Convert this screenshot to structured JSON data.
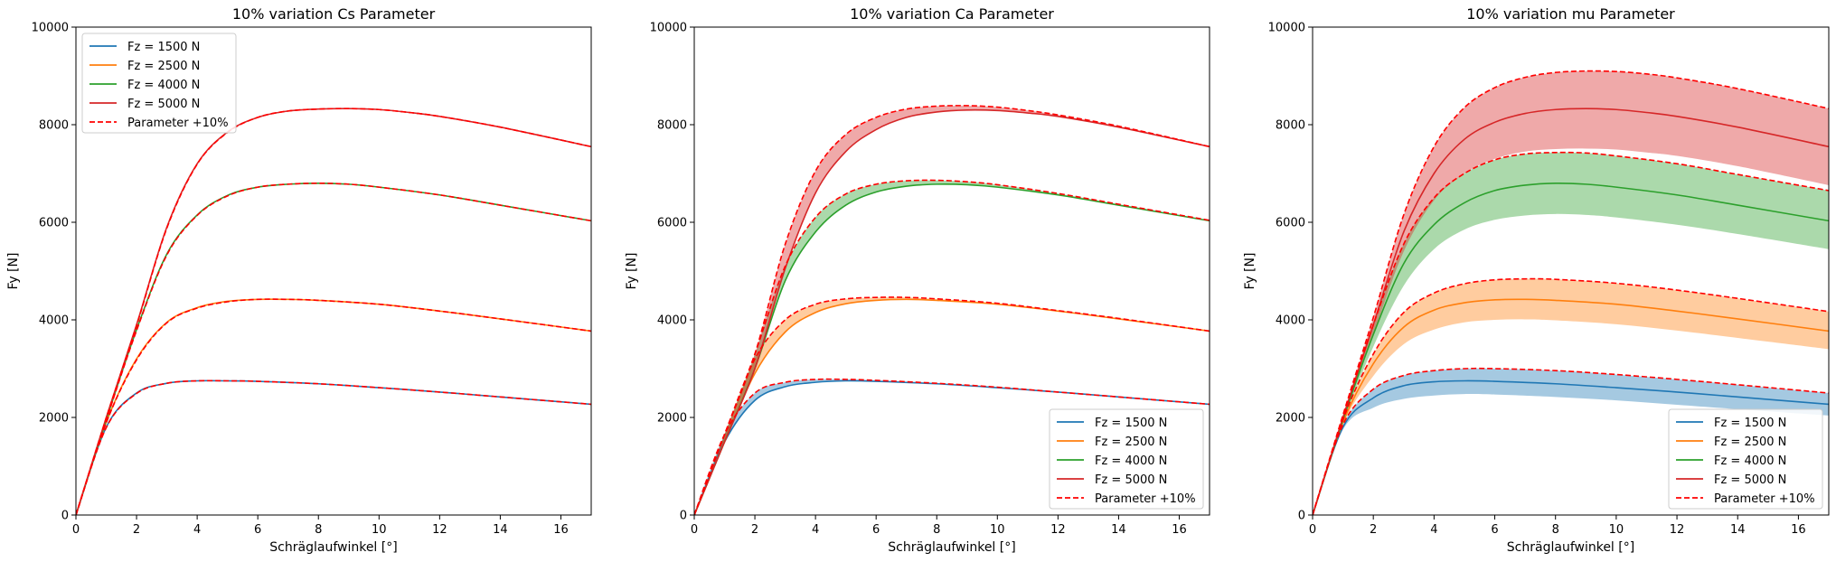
{
  "figure": {
    "colors": {
      "Fz = 1500 N": "#1f77b4",
      "Fz = 2500 N": "#ff7f0e",
      "Fz = 4000 N": "#2ca02c",
      "Fz = 5000 N": "#d62728",
      "Parameter +10%": "#ff0000"
    }
  },
  "chart_data": [
    {
      "type": "line",
      "title": "10% variation Cs Parameter",
      "xlabel": "Schräglaufwinkel [°]",
      "ylabel": "Fy [N]",
      "xlim": [
        0,
        17
      ],
      "ylim": [
        0,
        10000
      ],
      "xticks": [
        0,
        2,
        4,
        6,
        8,
        10,
        12,
        14,
        16
      ],
      "yticks": [
        0,
        2000,
        4000,
        6000,
        8000,
        10000
      ],
      "grid": false,
      "legend_position": "upper-left",
      "legend": [
        "Fz = 1500 N",
        "Fz = 2500 N",
        "Fz = 4000 N",
        "Fz = 5000 N",
        "Parameter +10%"
      ],
      "series": [
        {
          "name": "Fz = 1500 N",
          "x": [
            0,
            1,
            2,
            3,
            4,
            5,
            6,
            8,
            10,
            12,
            14,
            17
          ],
          "y": [
            0,
            1800,
            2500,
            2700,
            2750,
            2750,
            2740,
            2690,
            2610,
            2520,
            2420,
            2270
          ]
        },
        {
          "name": "Fz = 2500 N",
          "x": [
            0,
            1,
            2,
            3,
            4,
            5,
            6,
            7,
            8,
            10,
            12,
            14,
            17
          ],
          "y": [
            0,
            1900,
            3200,
            3950,
            4250,
            4380,
            4420,
            4420,
            4400,
            4320,
            4180,
            4020,
            3770
          ]
        },
        {
          "name": "Fz = 4000 N",
          "x": [
            0,
            1,
            2,
            3,
            4,
            5,
            6,
            7,
            8,
            9,
            10,
            12,
            14,
            17
          ],
          "y": [
            0,
            1950,
            3800,
            5350,
            6150,
            6550,
            6720,
            6780,
            6800,
            6780,
            6720,
            6560,
            6350,
            6030
          ]
        },
        {
          "name": "Fz = 5000 N",
          "x": [
            0,
            1,
            2,
            3,
            4,
            5,
            6,
            7,
            8,
            9,
            10,
            11,
            12,
            14,
            17
          ],
          "y": [
            0,
            2000,
            3900,
            5900,
            7200,
            7850,
            8150,
            8280,
            8320,
            8330,
            8310,
            8250,
            8170,
            7950,
            7550
          ]
        }
      ],
      "variation_series": [
        {
          "name": "Parameter +10%",
          "base": "Fz = 1500 N",
          "x": [
            0,
            1,
            2,
            3,
            4,
            5,
            6,
            8,
            10,
            12,
            14,
            17
          ],
          "y": [
            0,
            1790,
            2490,
            2700,
            2750,
            2750,
            2740,
            2690,
            2610,
            2520,
            2420,
            2270
          ]
        },
        {
          "name": "Parameter +10%",
          "base": "Fz = 2500 N",
          "x": [
            0,
            1,
            2,
            3,
            4,
            5,
            6,
            7,
            8,
            10,
            12,
            14,
            17
          ],
          "y": [
            0,
            1890,
            3180,
            3940,
            4240,
            4370,
            4420,
            4420,
            4400,
            4320,
            4180,
            4020,
            3770
          ]
        },
        {
          "name": "Parameter +10%",
          "base": "Fz = 4000 N",
          "x": [
            0,
            1,
            2,
            3,
            4,
            5,
            6,
            7,
            8,
            9,
            10,
            12,
            14,
            17
          ],
          "y": [
            0,
            1940,
            3780,
            5330,
            6140,
            6540,
            6720,
            6780,
            6800,
            6780,
            6720,
            6560,
            6350,
            6030
          ]
        },
        {
          "name": "Parameter +10%",
          "base": "Fz = 5000 N",
          "x": [
            0,
            1,
            2,
            3,
            4,
            5,
            6,
            7,
            8,
            9,
            10,
            11,
            12,
            14,
            17
          ],
          "y": [
            0,
            1990,
            3880,
            5880,
            7190,
            7840,
            8150,
            8280,
            8320,
            8330,
            8310,
            8250,
            8170,
            7950,
            7550
          ]
        }
      ]
    },
    {
      "type": "line",
      "title": "10% variation Ca Parameter",
      "xlabel": "Schräglaufwinkel [°]",
      "ylabel": "Fy [N]",
      "xlim": [
        0,
        17
      ],
      "ylim": [
        0,
        10000
      ],
      "xticks": [
        0,
        2,
        4,
        6,
        8,
        10,
        12,
        14,
        16
      ],
      "yticks": [
        0,
        2000,
        4000,
        6000,
        8000,
        10000
      ],
      "grid": false,
      "legend_position": "lower-right",
      "legend": [
        "Fz = 1500 N",
        "Fz = 2500 N",
        "Fz = 4000 N",
        "Fz = 5000 N",
        "Parameter +10%"
      ],
      "series": [
        {
          "name": "Fz = 1500 N",
          "x": [
            0,
            1,
            2,
            3,
            4,
            5,
            6,
            8,
            10,
            12,
            14,
            17
          ],
          "y": [
            0,
            1500,
            2350,
            2630,
            2720,
            2750,
            2740,
            2690,
            2610,
            2520,
            2420,
            2270
          ]
        },
        {
          "name": "Fz = 2500 N",
          "x": [
            0,
            1,
            2,
            3,
            4,
            5,
            6,
            7,
            8,
            10,
            12,
            14,
            17
          ],
          "y": [
            0,
            1500,
            2900,
            3750,
            4150,
            4330,
            4400,
            4420,
            4400,
            4320,
            4180,
            4020,
            3770
          ]
        },
        {
          "name": "Fz = 4000 N",
          "x": [
            0,
            1,
            2,
            3,
            4,
            5,
            6,
            7,
            8,
            9,
            10,
            12,
            14,
            17
          ],
          "y": [
            0,
            1500,
            3000,
            4800,
            5800,
            6350,
            6620,
            6740,
            6780,
            6770,
            6720,
            6560,
            6350,
            6030
          ]
        },
        {
          "name": "Fz = 5000 N",
          "x": [
            0,
            1,
            2,
            3,
            4,
            5,
            6,
            7,
            8,
            9,
            10,
            11,
            12,
            14,
            17
          ],
          "y": [
            0,
            1500,
            3000,
            5050,
            6600,
            7450,
            7900,
            8150,
            8260,
            8300,
            8290,
            8240,
            8170,
            7950,
            7550
          ]
        }
      ],
      "variation_series": [
        {
          "name": "Parameter +10%",
          "base": "Fz = 1500 N",
          "x": [
            0,
            1,
            2,
            3,
            4,
            5,
            6,
            8,
            10,
            12,
            14,
            17
          ],
          "y": [
            0,
            1650,
            2500,
            2720,
            2780,
            2780,
            2760,
            2700,
            2620,
            2520,
            2420,
            2270
          ]
        },
        {
          "name": "Parameter +10%",
          "base": "Fz = 2500 N",
          "x": [
            0,
            1,
            2,
            3,
            4,
            5,
            6,
            7,
            8,
            10,
            12,
            14,
            17
          ],
          "y": [
            0,
            1650,
            3200,
            4000,
            4320,
            4430,
            4460,
            4460,
            4430,
            4340,
            4190,
            4030,
            3770
          ]
        },
        {
          "name": "Parameter +10%",
          "base": "Fz = 4000 N",
          "x": [
            0,
            1,
            2,
            3,
            4,
            5,
            6,
            7,
            8,
            9,
            10,
            12,
            14,
            17
          ],
          "y": [
            0,
            1650,
            3300,
            5100,
            6100,
            6580,
            6780,
            6850,
            6860,
            6830,
            6770,
            6590,
            6370,
            6040
          ]
        },
        {
          "name": "Parameter +10%",
          "base": "Fz = 5000 N",
          "x": [
            0,
            1,
            2,
            3,
            4,
            5,
            6,
            7,
            8,
            9,
            10,
            11,
            12,
            14,
            17
          ],
          "y": [
            0,
            1650,
            3300,
            5550,
            7050,
            7800,
            8150,
            8320,
            8380,
            8390,
            8360,
            8290,
            8200,
            7970,
            7550
          ]
        }
      ]
    },
    {
      "type": "line",
      "title": "10% variation mu Parameter",
      "xlabel": "Schräglaufwinkel [°]",
      "ylabel": "Fy [N]",
      "xlim": [
        0,
        17
      ],
      "ylim": [
        0,
        10000
      ],
      "xticks": [
        0,
        2,
        4,
        6,
        8,
        10,
        12,
        14,
        16
      ],
      "yticks": [
        0,
        2000,
        4000,
        6000,
        8000,
        10000
      ],
      "grid": false,
      "legend_position": "lower-right",
      "legend": [
        "Fz = 1500 N",
        "Fz = 2500 N",
        "Fz = 4000 N",
        "Fz = 5000 N",
        "Parameter +10%"
      ],
      "series": [
        {
          "name": "Fz = 1500 N",
          "x": [
            0,
            1,
            2,
            3,
            4,
            5,
            6,
            8,
            10,
            12,
            14,
            17
          ],
          "y": [
            0,
            1800,
            2400,
            2650,
            2730,
            2750,
            2740,
            2690,
            2610,
            2520,
            2420,
            2270
          ]
        },
        {
          "name": "Fz = 2500 N",
          "x": [
            0,
            1,
            2,
            3,
            4,
            5,
            6,
            7,
            8,
            10,
            12,
            14,
            17
          ],
          "y": [
            0,
            1900,
            3100,
            3850,
            4200,
            4350,
            4410,
            4420,
            4400,
            4320,
            4180,
            4020,
            3770
          ]
        },
        {
          "name": "Fz = 4000 N",
          "x": [
            0,
            1,
            2,
            3,
            4,
            5,
            6,
            7,
            8,
            9,
            10,
            12,
            14,
            17
          ],
          "y": [
            0,
            1950,
            3700,
            5150,
            5950,
            6400,
            6650,
            6760,
            6800,
            6780,
            6720,
            6560,
            6350,
            6030
          ]
        },
        {
          "name": "Fz = 5000 N",
          "x": [
            0,
            1,
            2,
            3,
            4,
            5,
            6,
            7,
            8,
            9,
            10,
            11,
            12,
            14,
            17
          ],
          "y": [
            0,
            2000,
            3900,
            5800,
            7000,
            7700,
            8050,
            8230,
            8310,
            8330,
            8310,
            8250,
            8170,
            7950,
            7550
          ]
        }
      ],
      "variation_series": [
        {
          "name": "Parameter +10%",
          "base": "Fz = 1500 N",
          "x": [
            0,
            1,
            2,
            3,
            4,
            5,
            6,
            8,
            10,
            12,
            14,
            17
          ],
          "y": [
            0,
            1850,
            2580,
            2860,
            2960,
            3000,
            3000,
            2960,
            2880,
            2780,
            2670,
            2500
          ]
        },
        {
          "name": "Parameter +10%",
          "base": "Fz = 2500 N",
          "x": [
            0,
            1,
            2,
            3,
            4,
            5,
            6,
            7,
            8,
            10,
            12,
            14,
            17
          ],
          "y": [
            0,
            1950,
            3300,
            4150,
            4550,
            4740,
            4820,
            4840,
            4830,
            4750,
            4610,
            4440,
            4170
          ]
        },
        {
          "name": "Parameter +10%",
          "base": "Fz = 4000 N",
          "x": [
            0,
            1,
            2,
            3,
            4,
            5,
            6,
            7,
            8,
            9,
            10,
            12,
            14,
            17
          ],
          "y": [
            0,
            2000,
            3900,
            5550,
            6500,
            7000,
            7280,
            7400,
            7430,
            7420,
            7360,
            7200,
            6980,
            6650
          ]
        },
        {
          "name": "Parameter +10%",
          "base": "Fz = 5000 N",
          "x": [
            0,
            1,
            2,
            3,
            4,
            5,
            6,
            7,
            8,
            9,
            10,
            11,
            12,
            14,
            17
          ],
          "y": [
            0,
            2050,
            4050,
            6150,
            7550,
            8350,
            8760,
            8970,
            9070,
            9100,
            9090,
            9040,
            8960,
            8740,
            8330
          ]
        }
      ],
      "bands": [
        {
          "base": "Fz = 1500 N",
          "x": [
            0,
            1,
            2,
            3,
            4,
            5,
            6,
            8,
            10,
            12,
            14,
            17
          ],
          "lower": [
            0,
            1750,
            2200,
            2380,
            2450,
            2480,
            2470,
            2420,
            2350,
            2260,
            2170,
            2040
          ]
        },
        {
          "base": "Fz = 2500 N",
          "x": [
            0,
            1,
            2,
            3,
            4,
            5,
            6,
            7,
            8,
            10,
            12,
            14,
            17
          ],
          "lower": [
            0,
            1850,
            2850,
            3500,
            3800,
            3950,
            4000,
            4010,
            3990,
            3910,
            3780,
            3630,
            3400
          ]
        },
        {
          "base": "Fz = 4000 N",
          "x": [
            0,
            1,
            2,
            3,
            4,
            5,
            6,
            7,
            8,
            9,
            10,
            12,
            14,
            17
          ],
          "lower": [
            0,
            1900,
            3450,
            4700,
            5450,
            5850,
            6050,
            6140,
            6170,
            6150,
            6100,
            5950,
            5760,
            5450
          ]
        },
        {
          "base": "Fz = 5000 N",
          "x": [
            0,
            1,
            2,
            3,
            4,
            5,
            6,
            7,
            8,
            9,
            10,
            11,
            12,
            14,
            17
          ],
          "lower": [
            0,
            1950,
            3700,
            5400,
            6450,
            7000,
            7300,
            7450,
            7500,
            7510,
            7490,
            7430,
            7360,
            7150,
            6760
          ]
        }
      ]
    }
  ]
}
